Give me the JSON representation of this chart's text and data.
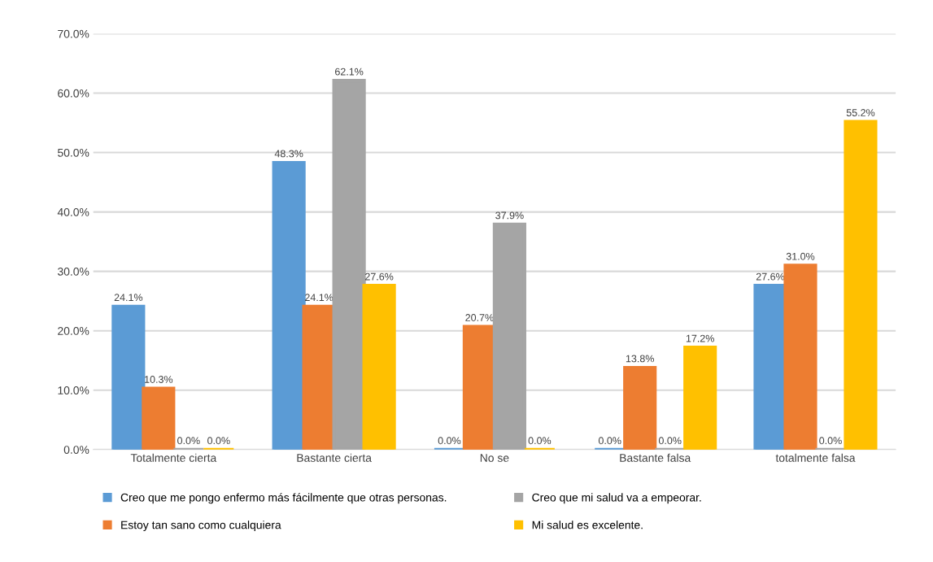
{
  "chart_data": {
    "type": "bar",
    "categories": [
      "Totalmente cierta",
      "Bastante cierta",
      "No se",
      "Bastante falsa",
      "totalmente falsa"
    ],
    "series": [
      {
        "name": "Creo que me pongo enfermo más fácilmente que otras personas.",
        "color": "#5b9bd5",
        "values": [
          24.1,
          48.3,
          0.0,
          0.0,
          27.6
        ],
        "value_labels": [
          "24.1%",
          "48.3%",
          "0.0%",
          "0.0%",
          "27.6%"
        ]
      },
      {
        "name": "Estoy tan sano como cualquiera",
        "color": "#ed7d31",
        "values": [
          10.3,
          24.1,
          20.7,
          13.8,
          31.0
        ],
        "value_labels": [
          "10.3%",
          "24.1%",
          "20.7%",
          "13.8%",
          "31.0%"
        ]
      },
      {
        "name": "Creo que mi salud va a empeorar.",
        "color": "#a5a5a5",
        "values": [
          0.0,
          62.1,
          37.9,
          0.0,
          0.0
        ],
        "value_labels": [
          "0.0%",
          "62.1%",
          "37.9%",
          "0.0%",
          "0.0%"
        ]
      },
      {
        "name": "Mi salud es excelente.",
        "color": "#ffc000",
        "values": [
          0.0,
          27.6,
          0.0,
          17.2,
          55.2
        ],
        "value_labels": [
          "0.0%",
          "27.6%",
          "0.0%",
          "17.2%",
          "55.2%"
        ]
      }
    ],
    "ylim": [
      0,
      70
    ],
    "yticks": [
      {
        "value": 0,
        "label": "0.0%"
      },
      {
        "value": 10,
        "label": "10.0%"
      },
      {
        "value": 20,
        "label": "20.0%"
      },
      {
        "value": 30,
        "label": "30.0%"
      },
      {
        "value": 40,
        "label": "40.0%"
      },
      {
        "value": 50,
        "label": "50.0%"
      },
      {
        "value": 60,
        "label": "60.0%"
      },
      {
        "value": 70,
        "label": "70.0%"
      }
    ],
    "grid": "y",
    "legend": "bottom"
  }
}
